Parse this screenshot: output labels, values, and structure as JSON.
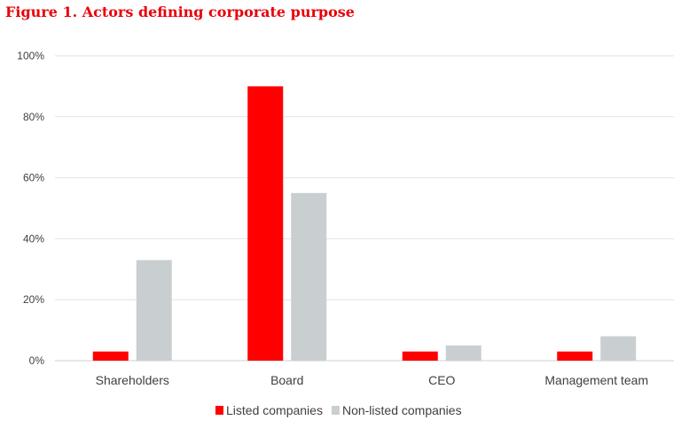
{
  "chart_data": {
    "type": "bar",
    "title": "Figure 1. Actors defining corporate purpose",
    "categories": [
      "Shareholders",
      "Board",
      "CEO",
      "Management team"
    ],
    "series": [
      {
        "name": "Listed companies",
        "color": "#ff0000",
        "values": [
          3,
          90,
          3,
          3
        ]
      },
      {
        "name": "Non-listed companies",
        "color": "#c9cfd1",
        "values": [
          33,
          55,
          5,
          8
        ]
      }
    ],
    "ylim": [
      0,
      100
    ],
    "yticks": [
      "0%",
      "20%",
      "40%",
      "60%",
      "80%",
      "100%"
    ],
    "grid": true,
    "legend": "bottom"
  }
}
